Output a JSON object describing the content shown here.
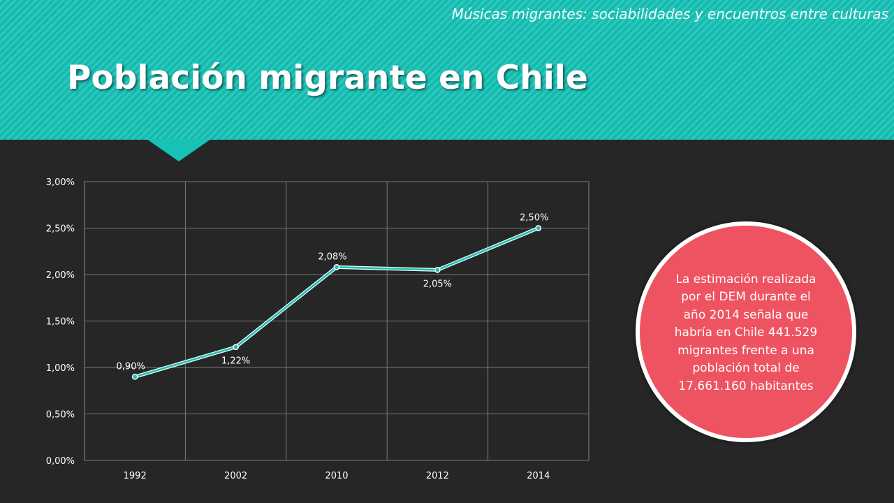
{
  "slide": {
    "subtitle": "Músicas migrantes: sociabilidades y encuentros entre culturas",
    "title": "Población migrante en Chile",
    "callout": "La estimación realizada por el DEM durante el año 2014 señala que habría en Chile 441.529 migrantes frente a una población total de 17.661.160 habitantes"
  },
  "colors": {
    "header": "#16c2b6",
    "background": "#262626",
    "line": "#1fbcb0",
    "callout": "#ee5361"
  },
  "chart_data": {
    "type": "line",
    "categories": [
      "1992",
      "2002",
      "2010",
      "2012",
      "2014"
    ],
    "series": [
      {
        "values": [
          0.9,
          1.22,
          2.08,
          2.05,
          2.5
        ]
      }
    ],
    "data_labels": [
      "0,90%",
      "1,22%",
      "2,08%",
      "2,05%",
      "2,50%"
    ],
    "ylim": [
      0,
      3
    ],
    "yticks": [
      0,
      0.5,
      1,
      1.5,
      2,
      2.5,
      3
    ],
    "ytick_labels": [
      "0,00%",
      "0,50%",
      "1,00%",
      "1,50%",
      "2,00%",
      "2,50%",
      "3,00%"
    ],
    "grid": true
  }
}
